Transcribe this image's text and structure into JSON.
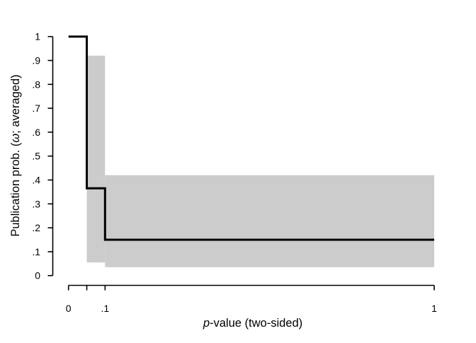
{
  "figure": {
    "background": "#FFFFFF"
  },
  "chart_data": {
    "type": "line",
    "subtype": "step",
    "title": "",
    "xlabel": "p-value (two-sided)",
    "ylabel": "Publication prob. (ω; averaged)",
    "xlabel_parts": [
      {
        "text": "p",
        "italic": true
      },
      {
        "text": "-value (two-sided)",
        "italic": false
      }
    ],
    "ylabel_parts": [
      {
        "text": "Publication prob. (",
        "italic": false
      },
      {
        "text": "ω",
        "italic": true
      },
      {
        "text": "; averaged)",
        "italic": false
      }
    ],
    "xlim": [
      0,
      1
    ],
    "ylim": [
      0,
      1
    ],
    "grid": false,
    "legend": null,
    "background": "#FFFFFF",
    "axis_color": "#000000",
    "text_color": "#000000",
    "band_color": "#CCCCCC",
    "line_color": "#000000",
    "x_ticks": [
      {
        "value": 0,
        "label": "0"
      },
      {
        "value": 0.05,
        "label": ""
      },
      {
        "value": 0.1,
        "label": ".1"
      },
      {
        "value": 1,
        "label": "1"
      }
    ],
    "y_ticks": [
      {
        "value": 0,
        "label": "0"
      },
      {
        "value": 0.1,
        "label": ".1"
      },
      {
        "value": 0.2,
        "label": ".2"
      },
      {
        "value": 0.3,
        "label": ".3"
      },
      {
        "value": 0.4,
        "label": ".4"
      },
      {
        "value": 0.5,
        "label": ".5"
      },
      {
        "value": 0.6,
        "label": ".6"
      },
      {
        "value": 0.7,
        "label": ".7"
      },
      {
        "value": 0.8,
        "label": ".8"
      },
      {
        "value": 0.9,
        "label": ".9"
      },
      {
        "value": 1,
        "label": "1"
      }
    ],
    "series": [
      {
        "name": "publication-probability-step",
        "color": "#000000",
        "line_width": 3,
        "points": [
          [
            0,
            1
          ],
          [
            0.05,
            1
          ],
          [
            0.05,
            0.365
          ],
          [
            0.1,
            0.365
          ],
          [
            0.1,
            0.15
          ],
          [
            1,
            0.15
          ]
        ]
      }
    ],
    "confidence_bands": [
      {
        "x_from": 0.05,
        "x_to": 0.1,
        "y_low": 0.055,
        "y_high": 0.92,
        "color": "#CCCCCC"
      },
      {
        "x_from": 0.1,
        "x_to": 1,
        "y_low": 0.035,
        "y_high": 0.42,
        "color": "#CCCCCC"
      }
    ]
  }
}
